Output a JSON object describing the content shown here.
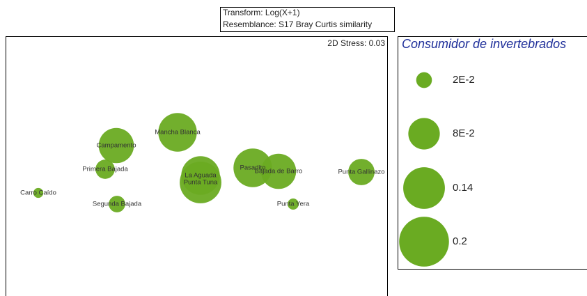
{
  "chart_data": {
    "type": "bubble",
    "transform_notes": [
      "Transform: Log(X+1)",
      "Resemblance: S17 Bray Curtis similarity"
    ],
    "stress": "2D Stress: 0.03",
    "legend_title": "Consumidor de invertebrados",
    "color": "#6aab22",
    "xlim": [
      0,
      549
    ],
    "ylim": [
      0,
      373
    ],
    "labels": [
      "Carro Caído",
      "Primera Bajada",
      "Campamento",
      "Segunda Bajada",
      "Mancha Blanca",
      "La Aguada",
      "Punta Tuna",
      "Pasadito",
      "Bajada de Barro",
      "Punta Gallinazo",
      "Punta Yera"
    ],
    "x": [
      47,
      143,
      159,
      160,
      247,
      280,
      280,
      355,
      392,
      511,
      413
    ],
    "y": [
      148,
      182,
      216,
      132,
      235,
      173,
      163,
      184,
      179,
      178,
      132
    ],
    "sizes": [
      0.008,
      0.03,
      0.1,
      0.022,
      0.12,
      0.12,
      0.14,
      0.12,
      0.1,
      0.056,
      0.01
    ],
    "legend": {
      "values": [
        0.02,
        0.08,
        0.14,
        0.2
      ],
      "value_labels": [
        "2E-2",
        "8E-2",
        "0.14",
        "0.2"
      ]
    }
  }
}
